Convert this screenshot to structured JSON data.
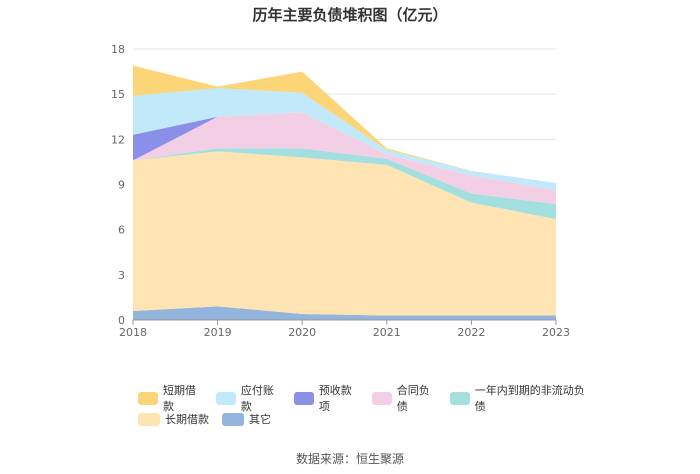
{
  "chart_data": {
    "type": "area",
    "title": "历年主要负债堆积图（亿元）",
    "x": [
      "2018",
      "2019",
      "2020",
      "2021",
      "2022",
      "2023"
    ],
    "ylim": [
      0,
      18
    ],
    "yticks": [
      "0",
      "3",
      "6",
      "9",
      "12",
      "15",
      "18"
    ],
    "grid": true,
    "legend_position": "bottom",
    "stacked": true,
    "series": [
      {
        "name": "其它",
        "color": "#93B4DC",
        "values": [
          0.6,
          0.9,
          0.4,
          0.3,
          0.3,
          0.3
        ]
      },
      {
        "name": "长期借款",
        "color": "#FDE4B2",
        "values": [
          10.0,
          10.3,
          10.4,
          10.0,
          7.5,
          6.4
        ]
      },
      {
        "name": "一年内到期的非流动负债",
        "color": "#A4DFE0",
        "values": [
          0.0,
          0.2,
          0.6,
          0.4,
          0.6,
          1.0
        ]
      },
      {
        "name": "合同负债",
        "color": "#F3CFE5",
        "values": [
          0.0,
          2.1,
          2.4,
          0.3,
          1.2,
          0.9
        ]
      },
      {
        "name": "预收款项",
        "color": "#8A8FEA",
        "values": [
          1.7,
          0.0,
          0.0,
          0.0,
          0.0,
          0.0
        ]
      },
      {
        "name": "应付账款",
        "color": "#C2E9FA",
        "values": [
          2.6,
          1.9,
          1.3,
          0.3,
          0.3,
          0.5
        ]
      },
      {
        "name": "短期借款",
        "color": "#FBD577",
        "values": [
          2.0,
          0.1,
          1.4,
          0.1,
          0.0,
          0.0
        ]
      }
    ],
    "legend": [
      [
        "短期借款",
        "应付账款",
        "预收款项",
        "合同负债",
        "一年内到期的非流动负债"
      ],
      [
        "长期借款",
        "其它"
      ]
    ],
    "source": "数据来源：恒生聚源"
  }
}
